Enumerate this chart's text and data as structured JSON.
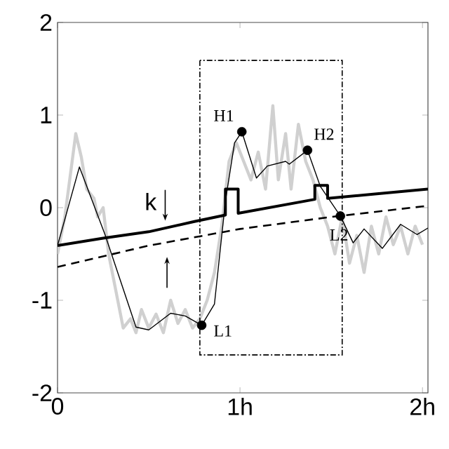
{
  "chart_data": {
    "type": "line",
    "xlim": [
      0,
      2.03
    ],
    "ylim": [
      -2,
      2
    ],
    "xticks": [
      0,
      {
        "value": 1,
        "label": "1h"
      },
      {
        "value": 2,
        "label": "2h"
      }
    ],
    "yticks": [
      -2,
      -1,
      0,
      1,
      2
    ],
    "grid": false,
    "series": [
      {
        "color": "#d0d0d0",
        "x": [
          0,
          0.04,
          0.08,
          0.1,
          0.13,
          0.16,
          0.2,
          0.22,
          0.25,
          0.28,
          0.32,
          0.36,
          0.4,
          0.43,
          0.46,
          0.5,
          0.54,
          0.58,
          0.62,
          0.66,
          0.7,
          0.74,
          0.78,
          0.82,
          0.86,
          0.9,
          0.94,
          0.98,
          1.02,
          1.06,
          1.1,
          1.14,
          1.18,
          1.21,
          1.25,
          1.28,
          1.32,
          1.36,
          1.4,
          1.44,
          1.48,
          1.52,
          1.56,
          1.6,
          1.64,
          1.68,
          1.72,
          1.76,
          1.8,
          1.84,
          1.88,
          1.92,
          1.96,
          2.0
        ],
        "values": [
          -0.5,
          -0.1,
          0.5,
          0.8,
          0.55,
          0.2,
          0.1,
          -0.1,
          0.0,
          -0.5,
          -0.9,
          -1.3,
          -1.2,
          -1.35,
          -1.1,
          -1.3,
          -1.15,
          -1.35,
          -1.0,
          -1.25,
          -1.1,
          -1.3,
          -1.2,
          -1.0,
          -0.7,
          -0.2,
          0.5,
          0.7,
          0.5,
          0.3,
          0.6,
          0.2,
          1.1,
          0.3,
          0.8,
          0.2,
          0.9,
          0.5,
          0.3,
          0.0,
          -0.2,
          -0.5,
          -0.1,
          -0.6,
          -0.3,
          -0.7,
          -0.2,
          -0.5,
          -0.1,
          -0.4,
          -0.2,
          -0.5,
          -0.2,
          -0.4
        ]
      },
      {
        "color": "#000000",
        "x": [
          0,
          0.12,
          0.26,
          0.43,
          0.5,
          0.62,
          0.7,
          0.79,
          0.86,
          0.92,
          0.97,
          1.01,
          1.09,
          1.15,
          1.25,
          1.27,
          1.37,
          1.44,
          1.55,
          1.62,
          1.68,
          1.78,
          1.88,
          1.97,
          2.03
        ],
        "values": [
          -0.41,
          0.44,
          -0.29,
          -1.29,
          -1.32,
          -1.14,
          -1.17,
          -1.27,
          -1.04,
          0.07,
          0.7,
          0.82,
          0.32,
          0.45,
          0.5,
          0.47,
          0.62,
          0.23,
          -0.09,
          -0.38,
          -0.23,
          -0.44,
          -0.18,
          -0.29,
          -0.22
        ]
      },
      {
        "color": "#000000",
        "x": [
          0,
          0.25,
          0.5,
          0.75,
          0.92,
          0.92,
          0.99,
          0.99,
          1.41,
          1.41,
          1.48,
          1.48,
          1.75,
          2.03
        ],
        "values": [
          -0.41,
          -0.33,
          -0.26,
          -0.15,
          -0.08,
          0.2,
          0.2,
          -0.06,
          0.09,
          0.24,
          0.24,
          0.1,
          0.15,
          0.2
        ]
      },
      {
        "color": "#000000",
        "line_style": "dashed",
        "x": [
          0,
          0.5,
          1,
          1.5,
          2.03
        ],
        "values": [
          -0.64,
          -0.41,
          -0.23,
          -0.1,
          0.02
        ]
      },
      {
        "type": "scatter",
        "color": "#000000",
        "x": [
          0.79,
          1.01,
          1.37,
          1.55
        ],
        "values": [
          -1.27,
          0.82,
          0.62,
          -0.09
        ]
      }
    ],
    "annotations": [
      "k",
      {
        "text": "L1",
        "x": 0.79,
        "y": -1.27
      },
      {
        "text": "H1",
        "x": 1.01,
        "y": 0.82
      },
      {
        "text": "H2",
        "x": 1.37,
        "y": 0.62
      },
      {
        "text": "L2",
        "x": 1.55,
        "y": -0.09
      }
    ]
  }
}
